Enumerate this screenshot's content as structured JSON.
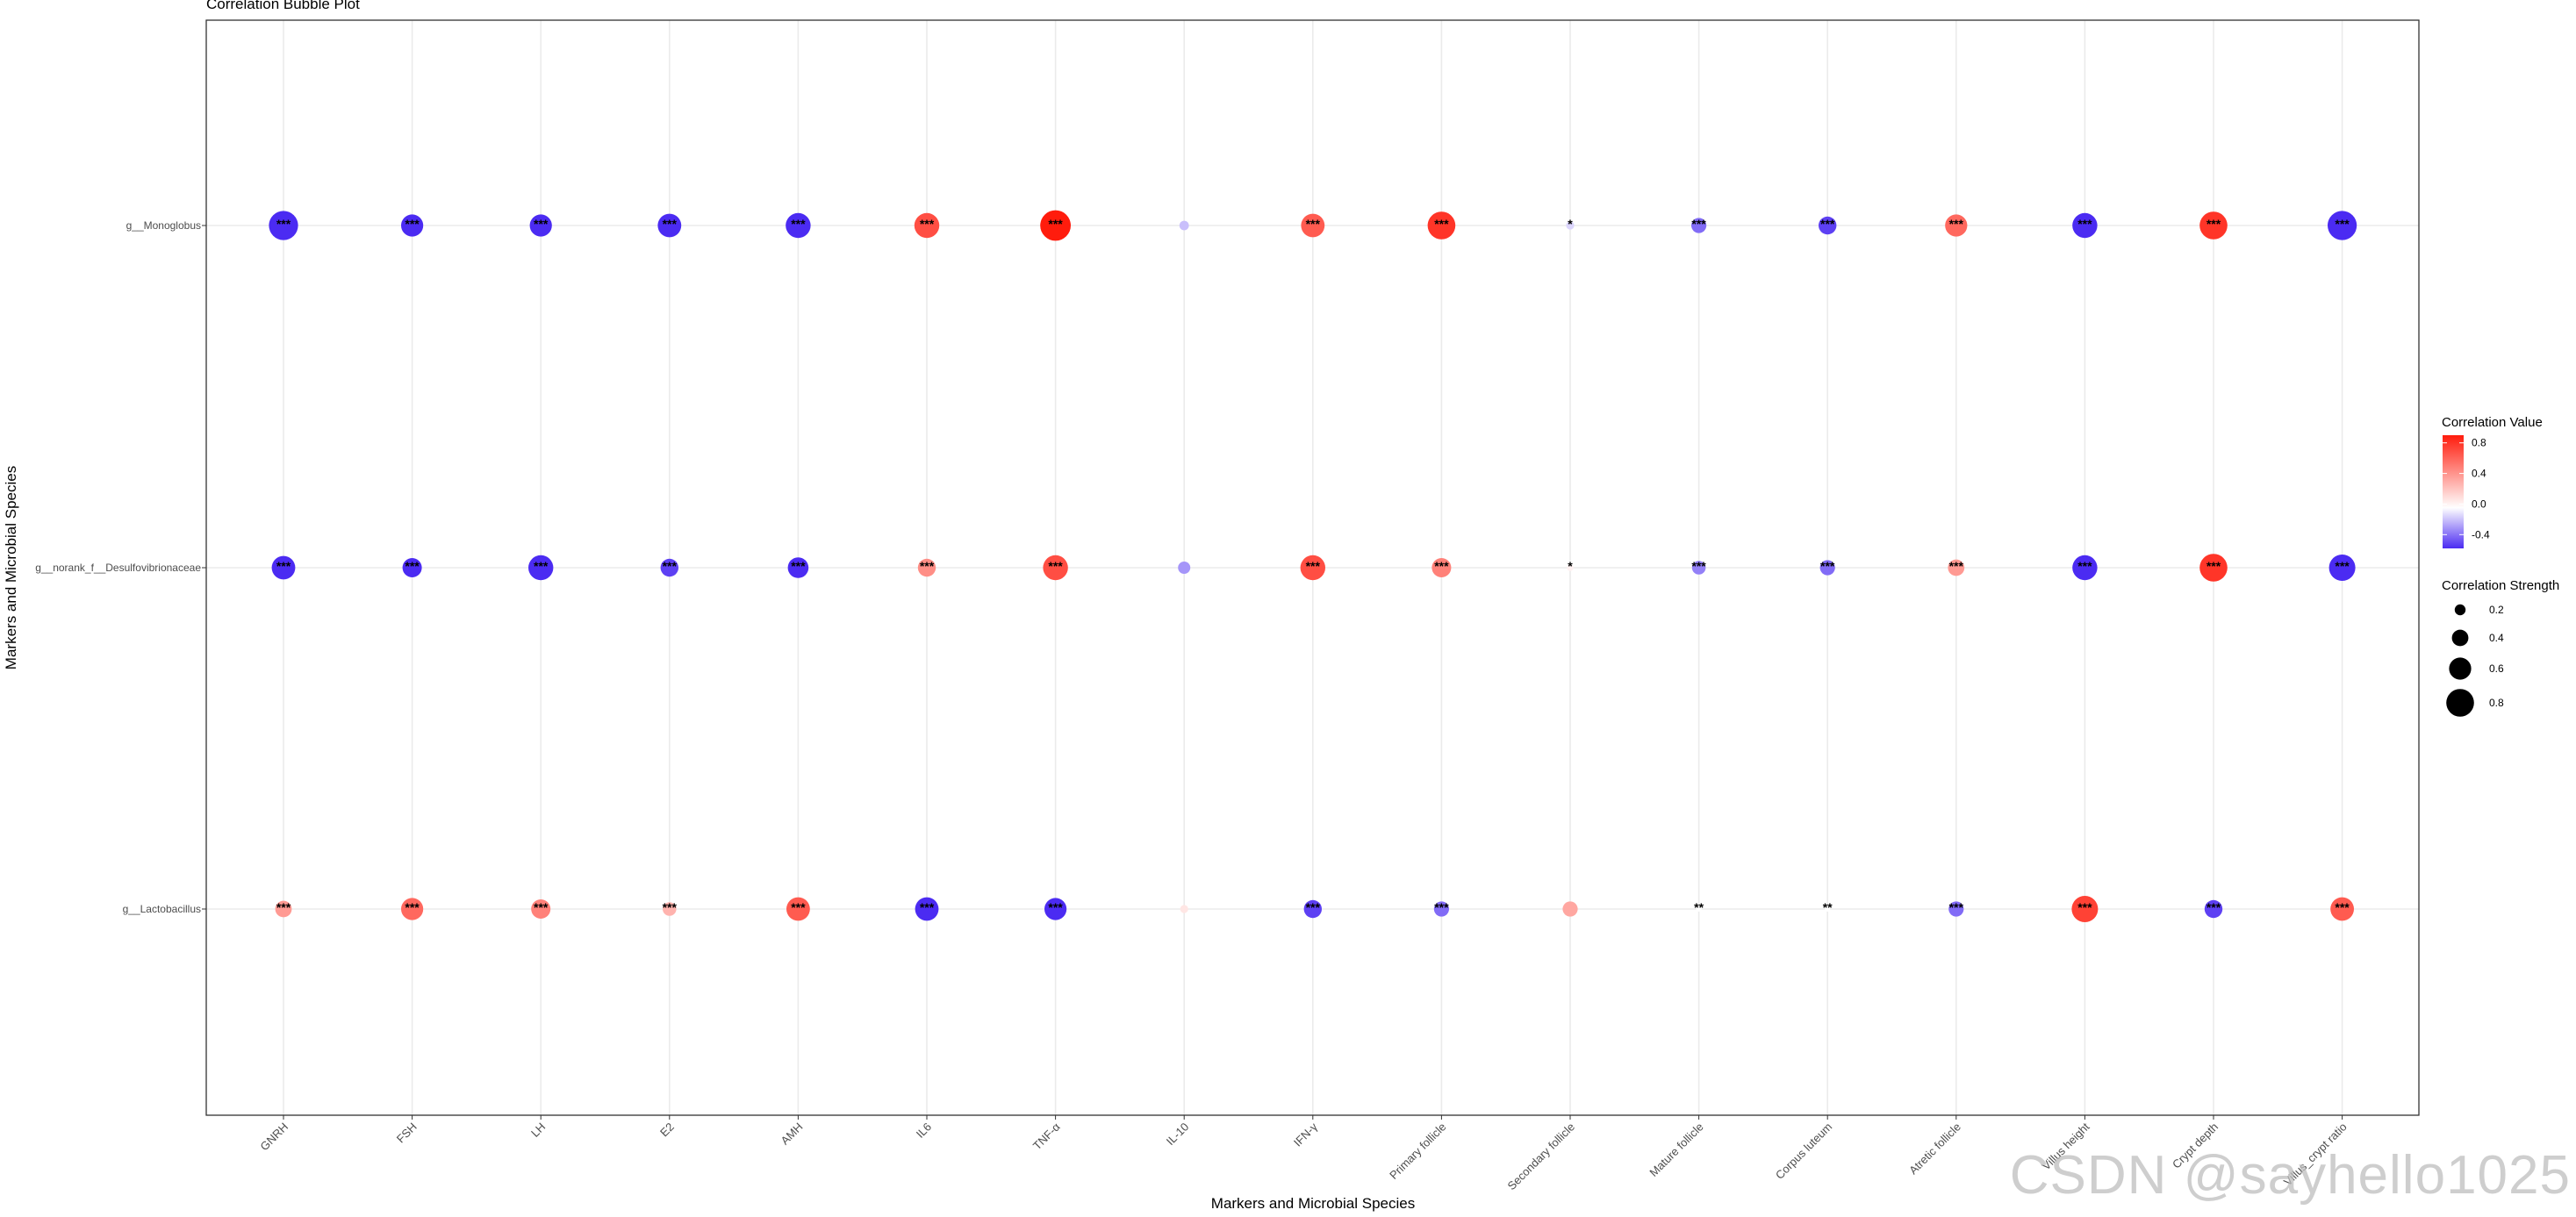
{
  "chart_data": {
    "type": "bubble",
    "title": "Correlation Bubble Plot",
    "xlabel": "Markers and Microbial Species",
    "ylabel": "Markers and Microbial Species",
    "categories": [
      "GNRH",
      "FSH",
      "LH",
      "E2",
      "AMH",
      "IL6",
      "TNF-α",
      "IL-10",
      "IFN-γ",
      "Primary follicle",
      "Secondary follicle",
      "Mature follicle",
      "Corpus luteum",
      "Atretic follicle",
      "Villus height",
      "Crypt depth",
      "Villus_crypt ratio"
    ],
    "rows": [
      "g__Monoglobus",
      "g__norank_f__Desulfovibrionaceae",
      "g__Lactobacillus"
    ],
    "series": [
      {
        "name": "g__Monoglobus",
        "values": [
          -0.85,
          -0.6,
          -0.6,
          -0.65,
          -0.7,
          0.7,
          0.9,
          -0.15,
          0.65,
          0.8,
          -0.1,
          -0.35,
          -0.45,
          0.6,
          -0.7,
          0.8,
          -0.85
        ],
        "significance": [
          "***",
          "***",
          "***",
          "***",
          "***",
          "***",
          "***",
          "",
          "***",
          "***",
          "*",
          "***",
          "***",
          "***",
          "***",
          "***",
          "***"
        ]
      },
      {
        "name": "g__norank_f__Desulfovibrionaceae",
        "values": [
          -0.65,
          -0.5,
          -0.7,
          -0.45,
          -0.55,
          0.45,
          0.7,
          -0.25,
          0.7,
          0.5,
          0.05,
          -0.3,
          -0.35,
          0.4,
          -0.7,
          0.8,
          -0.75
        ],
        "significance": [
          "***",
          "***",
          "***",
          "***",
          "***",
          "***",
          "***",
          "",
          "***",
          "***",
          "*",
          "***",
          "***",
          "***",
          "***",
          "***",
          "***"
        ]
      },
      {
        "name": "g__Lactobacillus",
        "values": [
          0.4,
          0.6,
          0.5,
          0.3,
          0.65,
          -0.65,
          -0.6,
          0.1,
          -0.45,
          -0.35,
          0.35,
          0.0,
          0.0,
          -0.35,
          0.75,
          -0.45,
          0.65
        ],
        "significance": [
          "***",
          "***",
          "***",
          "***",
          "***",
          "***",
          "***",
          "",
          "***",
          "***",
          "",
          "**",
          "**",
          "***",
          "***",
          "***",
          "***"
        ]
      }
    ],
    "color_scale": {
      "low": "#4b2bf2",
      "mid": "#ffffff",
      "high": "#ff1c0d",
      "domain": [
        -0.5,
        0.0,
        0.9
      ]
    },
    "legend_color": {
      "title": "Correlation Value",
      "ticks": [
        0.8,
        0.4,
        0.0,
        -0.4
      ],
      "labels": [
        "0.8",
        "0.4",
        "0.0",
        "-0.4"
      ]
    },
    "legend_size": {
      "title": "Correlation Strength",
      "values": [
        0.2,
        0.4,
        0.6,
        0.8
      ],
      "labels": [
        "0.2",
        "0.4",
        "0.6",
        "0.8"
      ]
    },
    "grid": true,
    "legend_position": "right"
  },
  "watermark": "CSDN @sayhello1025"
}
